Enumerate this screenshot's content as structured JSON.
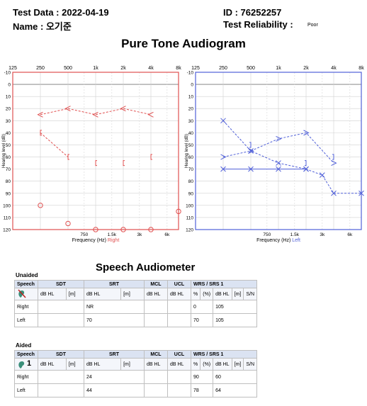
{
  "header": {
    "test_date": "Test Data : 2022-04-19",
    "name": "Name : 오기준",
    "id": "ID : 76252257",
    "reliability_label": "Test Reliability :",
    "reliability_value": "Poor"
  },
  "audiogram": {
    "title": "Pure Tone Audiogram",
    "top_freq_labels": [
      "125",
      "250",
      "500",
      "1k",
      "2k",
      "4k",
      "8k"
    ],
    "y_tick_labels": [
      "-10",
      "0",
      "10",
      "20",
      "30",
      "40",
      "50",
      "60",
      "70",
      "80",
      "90",
      "100",
      "110",
      "120"
    ],
    "ylabel": "Hearing level (dB)",
    "bottom_freq_labels": [
      "750",
      "1.5k",
      "3k",
      "6k"
    ],
    "xlabel": "Frequency (Hz)",
    "right_label": "Right",
    "left_label": "Left"
  },
  "chart_data": [
    {
      "type": "line",
      "title": "",
      "xlabel": "Frequency (Hz) Right",
      "ylabel": "Hearing level (dB)",
      "x": [
        125,
        250,
        500,
        1000,
        2000,
        4000,
        8000
      ],
      "ylim": [
        120,
        -10
      ],
      "color": "#e05050",
      "series": [
        {
          "values": [
            null,
            25,
            20,
            25,
            20,
            25,
            null
          ],
          "marker": "<",
          "style": "dashed"
        },
        {
          "values": [
            null,
            40,
            60,
            null,
            null,
            null,
            null
          ],
          "marker": "[",
          "style": "dashed"
        },
        {
          "values": [
            null,
            null,
            null,
            65,
            65,
            60,
            null
          ],
          "marker": "[",
          "style": "none"
        },
        {
          "values": [
            null,
            100,
            115,
            120,
            120,
            120,
            105
          ],
          "marker": "O",
          "style": "none"
        }
      ]
    },
    {
      "type": "line",
      "title": "",
      "xlabel": "Frequency (Hz) Left",
      "ylabel": "Hearing level (dB)",
      "x": [
        125,
        250,
        500,
        1000,
        2000,
        3000,
        4000,
        8000
      ],
      "ylim": [
        120,
        -10
      ],
      "color": "#5060d8",
      "series": [
        {
          "values": [
            null,
            30,
            55,
            65,
            70,
            75,
            90,
            90
          ],
          "marker": "X",
          "style": "dashed"
        },
        {
          "values": [
            null,
            70,
            70,
            70,
            70,
            null,
            null,
            null
          ],
          "marker": "X",
          "style": "solid"
        },
        {
          "values": [
            null,
            60,
            55,
            45,
            40,
            null,
            65,
            null
          ],
          "marker": ">",
          "style": "dashed"
        },
        {
          "values": [
            null,
            null,
            50,
            null,
            65,
            null,
            60,
            null
          ],
          "marker": "]",
          "style": "none"
        }
      ]
    }
  ],
  "speech": {
    "title": "Speech Audiometer",
    "unaided_label": "Unaided",
    "aided_label": "Aided",
    "groups": [
      "Speech",
      "SDT",
      "SRT",
      "MCL",
      "UCL",
      "WRS / SRS 1"
    ],
    "subheaders": [
      "dB HL",
      "[m]",
      "dB HL",
      "[m]",
      "dB HL",
      "dB HL",
      "%",
      "(%)",
      "dB HL",
      "[m]",
      "S/N"
    ],
    "aided_icon_num": "1",
    "unaided_rows": [
      {
        "ear": "Right",
        "srt": "NR",
        "wrs_pct": "0",
        "wrs_db": "105"
      },
      {
        "ear": "Left",
        "srt": "70",
        "wrs_pct": "70",
        "wrs_db": "105"
      }
    ],
    "aided_rows": [
      {
        "ear": "Right",
        "srt": "24",
        "wrs_pct": "90",
        "wrs_db": "60"
      },
      {
        "ear": "Left",
        "srt": "44",
        "wrs_pct": "78",
        "wrs_db": "64"
      }
    ]
  },
  "colors": {
    "right": "#e05050",
    "left": "#5060d8",
    "header_bg": "#dbe3f2"
  }
}
